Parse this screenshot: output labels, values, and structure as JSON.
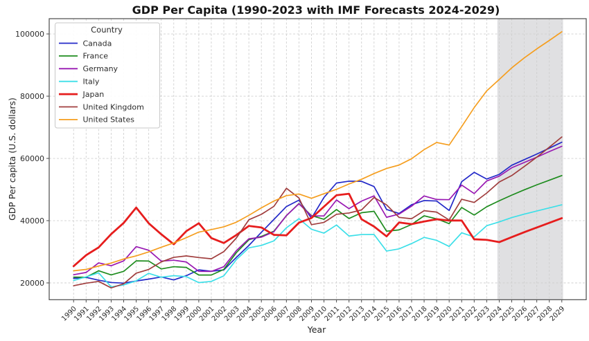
{
  "chart_data": {
    "type": "line",
    "title": "GDP Per Capita (1990-2023 with IMF Forecasts 2024-2029)",
    "xlabel": "Year",
    "ylabel": "GDP Per capita (U.S. dollars)",
    "legend_title": "Country",
    "legend_position": "upper left",
    "grid": true,
    "xlim": [
      1988.05,
      2030.95
    ],
    "ylim": [
      14600,
      104900
    ],
    "y_ticks": [
      20000,
      40000,
      60000,
      80000,
      100000
    ],
    "x": [
      1990,
      1991,
      1992,
      1993,
      1994,
      1995,
      1996,
      1997,
      1998,
      1999,
      2000,
      2001,
      2002,
      2003,
      2004,
      2005,
      2006,
      2007,
      2008,
      2009,
      2010,
      2011,
      2012,
      2013,
      2014,
      2015,
      2016,
      2017,
      2018,
      2019,
      2020,
      2021,
      2022,
      2023,
      2024,
      2025,
      2026,
      2027,
      2028,
      2029
    ],
    "forecast_region": {
      "x_start": 2023.85,
      "x_end": 2029.1,
      "color": "#b4b4ba",
      "opacity": 0.42
    },
    "series": [
      {
        "name": "Canada",
        "color": "#2329c8",
        "line_width": 1.7,
        "values": [
          21448,
          21768,
          20880,
          20121,
          19935,
          20613,
          21227,
          21902,
          20962,
          22315,
          24190,
          23738,
          24169,
          28201,
          32028,
          36266,
          40386,
          44544,
          46594,
          40773,
          47450,
          52087,
          52678,
          52635,
          50956,
          43596,
          42316,
          45129,
          46454,
          46328,
          43258,
          52515,
          55522,
          53372,
          54870,
          57800,
          59600,
          61400,
          63300,
          65200
        ]
      },
      {
        "name": "France",
        "color": "#1e8c1e",
        "line_width": 1.7,
        "values": [
          21866,
          21825,
          23899,
          22567,
          23704,
          27077,
          27021,
          24490,
          25212,
          24974,
          22526,
          22527,
          24332,
          29708,
          33870,
          34950,
          36600,
          41600,
          45520,
          41631,
          40443,
          43571,
          40688,
          42554,
          43009,
          36613,
          37037,
          38781,
          41557,
          40579,
          39055,
          44229,
          41800,
          44461,
          46400,
          48200,
          49900,
          51500,
          53000,
          54500
        ]
      },
      {
        "name": "Germany",
        "color": "#9818b2",
        "line_width": 1.7,
        "values": [
          22632,
          23358,
          26438,
          25523,
          27077,
          31658,
          30486,
          26997,
          27289,
          26726,
          23718,
          23687,
          25205,
          30360,
          34166,
          34697,
          36448,
          41640,
          45427,
          41486,
          41532,
          46645,
          43856,
          46286,
          47960,
          41086,
          42099,
          44653,
          47939,
          46805,
          46735,
          51426,
          48718,
          52746,
          54300,
          57000,
          58700,
          60400,
          62200,
          63900
        ]
      },
      {
        "name": "Italy",
        "color": "#3cdfe8",
        "line_width": 1.7,
        "values": [
          20757,
          21957,
          23243,
          18739,
          19337,
          20664,
          23081,
          21829,
          22318,
          22021,
          20088,
          20483,
          22270,
          27466,
          31260,
          32043,
          33502,
          37700,
          40640,
          37227,
          36001,
          38599,
          35054,
          35550,
          35565,
          30230,
          30939,
          32649,
          34622,
          33673,
          31714,
          36088,
          34776,
          38373,
          39600,
          41000,
          42100,
          43100,
          44100,
          45100
        ]
      },
      {
        "name": "Japan",
        "color": "#e61d1d",
        "line_width": 2.8,
        "values": [
          25371,
          28915,
          31414,
          35682,
          39268,
          44197,
          39164,
          35638,
          32423,
          36622,
          39169,
          34410,
          32832,
          35389,
          38307,
          37819,
          35434,
          35275,
          39339,
          40855,
          44508,
          48168,
          48633,
          40454,
          38109,
          34961,
          39411,
          38891,
          39727,
          40458,
          40041,
          40059,
          34017,
          33834,
          33100,
          34700,
          36300,
          37800,
          39300,
          40800
        ]
      },
      {
        "name": "United Kingdom",
        "color": "#a03d3d",
        "line_width": 1.7,
        "values": [
          19095,
          19901,
          20487,
          18389,
          19709,
          23123,
          24333,
          26734,
          28214,
          28670,
          28150,
          27745,
          30057,
          34419,
          40290,
          42030,
          44600,
          50397,
          47287,
          38713,
          39436,
          42039,
          42463,
          43449,
          47448,
          45071,
          41048,
          40622,
          43204,
          42747,
          40217,
          46870,
          45850,
          48867,
          52423,
          54500,
          57400,
          60400,
          63600,
          66900
        ]
      },
      {
        "name": "United States",
        "color": "#f59e1f",
        "line_width": 1.7,
        "values": [
          23889,
          24342,
          25419,
          26387,
          27695,
          28691,
          29968,
          31459,
          32854,
          34515,
          36330,
          37134,
          38023,
          39496,
          41713,
          44115,
          46302,
          48050,
          48570,
          47195,
          48651,
          50066,
          51784,
          53291,
          55124,
          56763,
          57867,
          59908,
          62823,
          65120,
          64300,
          70219,
          76330,
          81695,
          85373,
          89100,
          92300,
          95200,
          97900,
          100700
        ]
      }
    ]
  }
}
